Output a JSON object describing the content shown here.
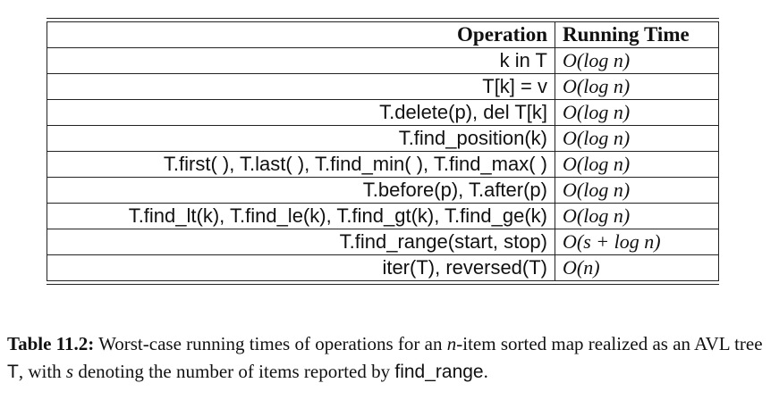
{
  "table": {
    "headers": {
      "operation": "Operation",
      "running_time": "Running Time"
    },
    "rows": [
      {
        "operation": "k in T",
        "time": "O(log n)"
      },
      {
        "operation": "T[k] = v",
        "time": "O(log n)"
      },
      {
        "operation": "T.delete(p), del T[k]",
        "time": "O(log n)"
      },
      {
        "operation": "T.find_position(k)",
        "time": "O(log n)"
      },
      {
        "operation": "T.first( ), T.last( ), T.find_min( ), T.find_max( )",
        "time": "O(log n)"
      },
      {
        "operation": "T.before(p), T.after(p)",
        "time": "O(log n)"
      },
      {
        "operation": "T.find_lt(k), T.find_le(k), T.find_gt(k), T.find_ge(k)",
        "time": "O(log n)"
      },
      {
        "operation": "T.find_range(start, stop)",
        "time": "O(s + log n)"
      },
      {
        "operation": "iter(T), reversed(T)",
        "time": "O(n)"
      }
    ]
  },
  "caption": {
    "label": "Table 11.2:",
    "text_1": "Worst-case running times of operations for an ",
    "var_n": "n",
    "text_2": "-item sorted map realized as an AVL tree ",
    "tree": "T",
    "text_3": ", with ",
    "var_s": "s",
    "text_4": " denoting the number of items reported by ",
    "method": "find_range",
    "text_5": "."
  }
}
